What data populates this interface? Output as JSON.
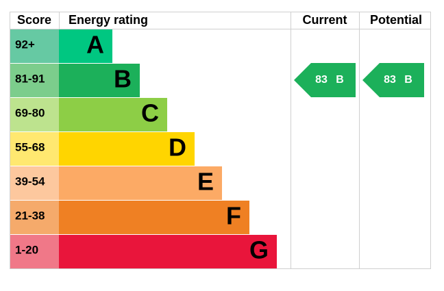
{
  "header": {
    "score": "Score",
    "rating": "Energy rating",
    "current": "Current",
    "potential": "Potential"
  },
  "rows": [
    {
      "score": "92+",
      "band": "A",
      "color": "#00c781",
      "score_color": "#66c9a3"
    },
    {
      "score": "81-91",
      "band": "B",
      "color": "#1cb05a",
      "score_color": "#7ccd8c"
    },
    {
      "score": "69-80",
      "band": "C",
      "color": "#8dce46",
      "score_color": "#bde38e"
    },
    {
      "score": "55-68",
      "band": "D",
      "color": "#ffd500",
      "score_color": "#ffe870"
    },
    {
      "score": "39-54",
      "band": "E",
      "color": "#fcaa65",
      "score_color": "#fdc89e"
    },
    {
      "score": "21-38",
      "band": "F",
      "color": "#ef8023",
      "score_color": "#f5aa6b"
    },
    {
      "score": "1-20",
      "band": "G",
      "color": "#e9153b",
      "score_color": "#f07888"
    }
  ],
  "current": {
    "value": 83,
    "band": "B"
  },
  "potential": {
    "value": 83,
    "band": "B"
  }
}
